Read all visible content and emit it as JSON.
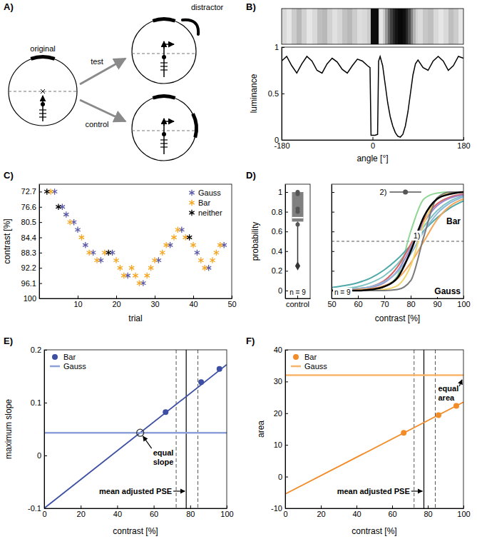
{
  "diagram": {
    "panel": "A)",
    "labels": {
      "original": "original",
      "test": "test",
      "control": "control",
      "distractor": "distractor"
    }
  },
  "chart_data": [
    {
      "type": "line",
      "panel": "B)",
      "color": "#000000",
      "x": [
        -180,
        -170,
        -160,
        -150,
        -140,
        -130,
        -120,
        -110,
        -100,
        -90,
        -80,
        -70,
        -60,
        -50,
        -40,
        -30,
        -20,
        -10,
        -5,
        -3,
        0,
        5,
        10,
        12,
        15,
        20,
        25,
        30,
        35,
        40,
        45,
        50,
        55,
        60,
        65,
        70,
        75,
        80,
        85,
        90,
        100,
        110,
        120,
        130,
        140,
        150,
        160,
        170,
        180
      ],
      "values": [
        0.85,
        0.9,
        0.8,
        0.72,
        0.82,
        0.9,
        0.85,
        0.75,
        0.72,
        0.82,
        0.88,
        0.84,
        0.76,
        0.72,
        0.8,
        0.87,
        0.85,
        0.8,
        0.78,
        0.05,
        0.05,
        0.05,
        0.06,
        0.85,
        0.9,
        0.8,
        0.6,
        0.4,
        0.25,
        0.15,
        0.08,
        0.04,
        0.03,
        0.06,
        0.15,
        0.3,
        0.5,
        0.7,
        0.82,
        0.86,
        0.78,
        0.75,
        0.85,
        0.9,
        0.85,
        0.75,
        0.8,
        0.9,
        0.88
      ],
      "xlim": [
        -180,
        180
      ],
      "xticks": [
        -180,
        0,
        180
      ],
      "ylim": [
        0,
        1
      ],
      "yticks": [
        0,
        0.5,
        1
      ],
      "x_label": "angle [°]",
      "y_label": "luminance"
    },
    {
      "type": "scatter",
      "panel": "C)",
      "marker": "asterisk",
      "legend": "upper right",
      "series": [
        {
          "name": "Gauss",
          "color": "#5a5aa8",
          "x": [
            4,
            6,
            7,
            9,
            10,
            12,
            14,
            16,
            19,
            23,
            27,
            31,
            34,
            37,
            41,
            44,
            48
          ],
          "values": [
            72.7,
            76.6,
            78.55,
            80.5,
            82.45,
            86.35,
            88.3,
            90.25,
            88.3,
            94.15,
            96.1,
            90.25,
            86.35,
            82.45,
            88.3,
            92.2,
            86.35
          ]
        },
        {
          "name": "Bar",
          "color": "#f5a623",
          "x": [
            3,
            8,
            11,
            13,
            15,
            17,
            20,
            21,
            22,
            24,
            25,
            26,
            28,
            29,
            30,
            32,
            33,
            35,
            36,
            38,
            40,
            42,
            43,
            45,
            46,
            47
          ],
          "values": [
            72.7,
            80.5,
            84.4,
            88.3,
            90.25,
            88.3,
            90.25,
            92.2,
            94.15,
            92.2,
            94.15,
            96.1,
            94.15,
            92.2,
            90.25,
            88.3,
            86.35,
            84.4,
            82.45,
            84.4,
            86.35,
            90.25,
            92.2,
            90.25,
            88.3,
            86.35
          ]
        },
        {
          "name": "neither",
          "color": "#000000",
          "x": [
            2,
            5,
            18,
            39
          ],
          "values": [
            72.7,
            76.6,
            88.3,
            84.4
          ]
        }
      ],
      "xlim": [
        0,
        50
      ],
      "xticks": [
        10,
        20,
        30,
        40,
        50
      ],
      "ylim": [
        100,
        70.8
      ],
      "yticks": [
        72.7,
        76.6,
        80.5,
        84.4,
        88.3,
        92.2,
        96.1,
        100
      ],
      "x_label": "trial",
      "y_label": "contrast [%]"
    },
    {
      "type": "box",
      "panel": "D)",
      "categories": [
        "control"
      ],
      "color": "#808080",
      "box": {
        "whisker_low": 0.25,
        "q1": 0.7,
        "median": 0.74,
        "q3": 1,
        "whisker_high": 1
      },
      "points": [
        1,
        0.98,
        0.83,
        0.8,
        0.67
      ],
      "ylim": [
        -0.08,
        1.08
      ],
      "yticks": [
        0,
        0.2,
        0.4,
        0.6,
        0.8,
        1
      ],
      "y_label": "probability",
      "annotation": "n = 9"
    },
    {
      "type": "line",
      "tick_labels": "x",
      "x": [
        50,
        55,
        60,
        65,
        70,
        75,
        80,
        85,
        90,
        95,
        100
      ],
      "series": [
        {
          "color": "#8fd694",
          "values": [
            0,
            0,
            0,
            0.01,
            0.04,
            0.15,
            0.6,
            0.93,
            0.99,
            1,
            1
          ]
        },
        {
          "color": "#4fa9a9",
          "values": [
            0.03,
            0.05,
            0.08,
            0.13,
            0.21,
            0.32,
            0.46,
            0.61,
            0.74,
            0.84,
            0.91
          ]
        },
        {
          "color": "#7fc4c4",
          "values": [
            0.01,
            0.02,
            0.04,
            0.08,
            0.15,
            0.27,
            0.45,
            0.65,
            0.81,
            0.91,
            0.96
          ]
        },
        {
          "color": "#d9605f",
          "values": [
            0,
            0.01,
            0.02,
            0.04,
            0.1,
            0.24,
            0.47,
            0.72,
            0.88,
            0.95,
            0.98
          ]
        },
        {
          "color": "#9c88c8",
          "values": [
            0,
            0,
            0.01,
            0.03,
            0.08,
            0.2,
            0.43,
            0.69,
            0.86,
            0.94,
            0.97
          ]
        },
        {
          "color": "#8fb8d8",
          "values": [
            0,
            0.01,
            0.02,
            0.04,
            0.09,
            0.19,
            0.37,
            0.6,
            0.78,
            0.89,
            0.95
          ]
        },
        {
          "color": "#f4a65a",
          "values": [
            0,
            0,
            0.01,
            0.02,
            0.05,
            0.12,
            0.28,
            0.5,
            0.72,
            0.86,
            0.93
          ]
        },
        {
          "color": "#f2d46b",
          "values": [
            0,
            0,
            0,
            0,
            0.01,
            0.05,
            0.25,
            0.68,
            0.93,
            0.99,
            1
          ]
        },
        {
          "color": "#7a7a7a",
          "values": [
            0,
            0,
            0,
            0,
            0,
            0.01,
            0.1,
            0.55,
            0.94,
            1,
            1
          ]
        },
        {
          "color": "#000000",
          "values": [
            0,
            0,
            0,
            0.01,
            0.04,
            0.13,
            0.4,
            0.75,
            0.93,
            0.98,
            1
          ]
        }
      ],
      "xlim": [
        50,
        100
      ],
      "xticks": [
        50,
        60,
        70,
        80,
        90,
        100
      ],
      "ylim": [
        -0.08,
        1.08
      ],
      "yticks": [
        0,
        0.2,
        0.4,
        0.6,
        0.8,
        1
      ],
      "x_label": "contrast [%]",
      "reference_line": 0.5,
      "pse_marker": {
        "x": 78,
        "y": 1,
        "error": 6
      },
      "annotations": {
        "n": "n = 9",
        "curve_label": "1)",
        "marker_label": "2)",
        "upper": "Bar",
        "lower": "Gauss"
      }
    },
    {
      "type": "scatter",
      "panel": "E)",
      "legend": "upper left",
      "series": [
        {
          "name": "Bar",
          "type": "scatter",
          "marker": "circle",
          "color": "#3d4fa3",
          "x": [
            66.5,
            86,
            96
          ],
          "values": [
            0.082,
            0.139,
            0.164
          ],
          "fit": {
            "x": [
              0,
              100
            ],
            "values": [
              -0.1,
              0.172
            ]
          }
        },
        {
          "name": "Gauss",
          "type": "line",
          "color": "#8ea0d8",
          "x": [
            0,
            100
          ],
          "values": [
            0.043,
            0.043
          ]
        }
      ],
      "pse": {
        "mean": 77.8,
        "lower": 72.3,
        "upper": 84.2
      },
      "equal_point": {
        "x": 52.6,
        "y": 0.043
      },
      "xlim": [
        0,
        100
      ],
      "xticks": [
        0,
        20,
        40,
        60,
        80,
        100
      ],
      "ylim": [
        -0.1,
        0.2
      ],
      "yticks": [
        -0.1,
        0,
        0.1,
        0.2
      ],
      "x_label": "contrast [%]",
      "y_label": "maximum slope",
      "annotations": {
        "equal": "equal slope",
        "pse": "mean adjusted PSE"
      }
    },
    {
      "type": "scatter",
      "panel": "F)",
      "legend": "upper left",
      "series": [
        {
          "name": "Bar",
          "type": "scatter",
          "marker": "circle",
          "color": "#f28c28",
          "x": [
            66.5,
            86,
            96
          ],
          "values": [
            13.8,
            19.4,
            22.3
          ],
          "fit": {
            "x": [
              0,
              100
            ],
            "values": [
              -5.5,
              23.5
            ]
          }
        },
        {
          "name": "Gauss",
          "type": "line",
          "color": "#f7b46a",
          "x": [
            0,
            100
          ],
          "values": [
            32,
            32
          ]
        }
      ],
      "pse": {
        "mean": 77.8,
        "lower": 72.3,
        "upper": 84.2
      },
      "xlim": [
        0,
        100
      ],
      "xticks": [
        0,
        20,
        40,
        60,
        80,
        100
      ],
      "ylim": [
        -10,
        40
      ],
      "yticks": [
        -10,
        0,
        10,
        20,
        30,
        40
      ],
      "x_label": "contrast [%]",
      "y_label": "area",
      "annotations": {
        "equal": "equal area",
        "pse": "mean adjusted PSE"
      }
    }
  ]
}
